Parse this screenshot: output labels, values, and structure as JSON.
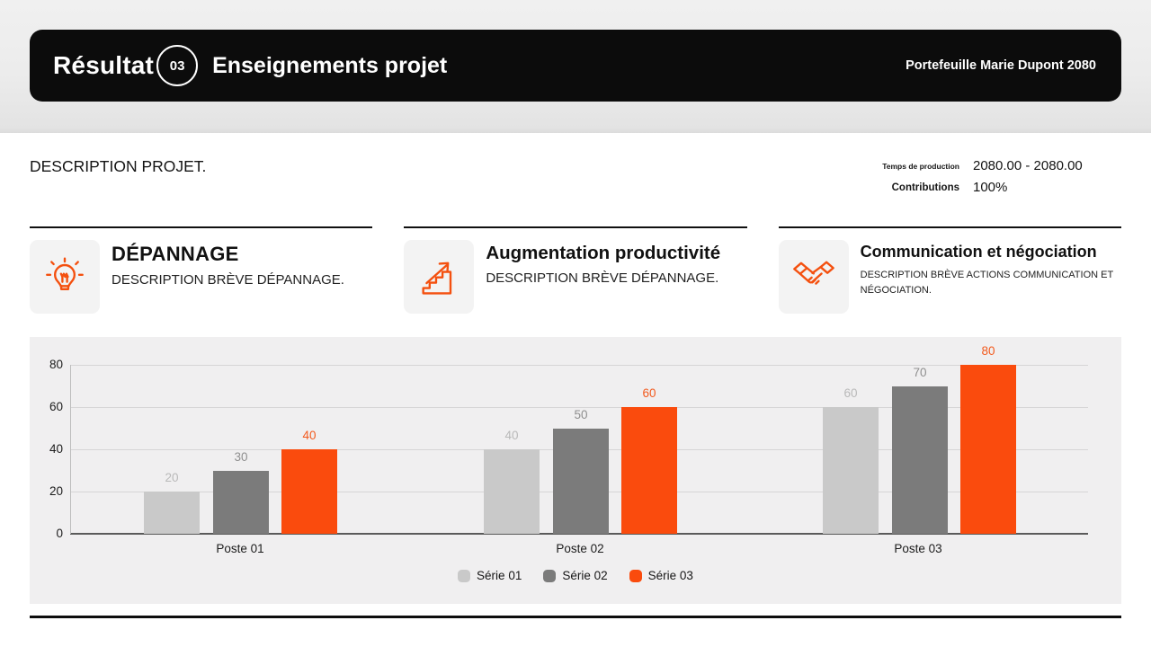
{
  "header": {
    "kicker": "Résultat",
    "badge": "03",
    "title": "Enseignements projet",
    "right_label": "Portefeuille Marie Dupont 2080"
  },
  "overview": {
    "description": "DESCRIPTION PROJET.",
    "stats": [
      {
        "label": "Temps de production",
        "value": "2080.00 - 2080.00"
      },
      {
        "label": "Contributions",
        "value": "100%"
      }
    ]
  },
  "cards": [
    {
      "icon": "lightbulb-icon",
      "title": "DÉPANNAGE",
      "description": "DESCRIPTION BRÈVE DÉPANNAGE."
    },
    {
      "icon": "stairs-arrow-icon",
      "title": "Augmentation productivité",
      "description": "DESCRIPTION BRÈVE DÉPANNAGE."
    },
    {
      "icon": "handshake-icon",
      "title": "Communication et négociation",
      "description": "DESCRIPTION BRÈVE ACTIONS COMMUNICATION ET NÉGOCIATION."
    }
  ],
  "chart_data": {
    "type": "bar",
    "categories": [
      "Poste 01",
      "Poste 02",
      "Poste 03"
    ],
    "series": [
      {
        "name": "Série 01",
        "color": "#c9c9c9",
        "label_color": "#b9b9b9",
        "values": [
          20,
          40,
          60
        ]
      },
      {
        "name": "Série 02",
        "color": "#7b7b7b",
        "label_color": "#8f8f8f",
        "values": [
          30,
          50,
          70
        ]
      },
      {
        "name": "Série 03",
        "color": "#fa4b0d",
        "label_color": "#f25a1e",
        "values": [
          40,
          60,
          80
        ]
      }
    ],
    "ylim": [
      0,
      80
    ],
    "yticks": [
      0,
      20,
      40,
      60,
      80
    ],
    "grid": true,
    "legend_position": "bottom",
    "title": "",
    "xlabel": "",
    "ylabel": ""
  },
  "colors": {
    "accent": "#fa4b0d",
    "header_bg": "#0c0c0c",
    "chart_bg": "#f0eff0"
  }
}
